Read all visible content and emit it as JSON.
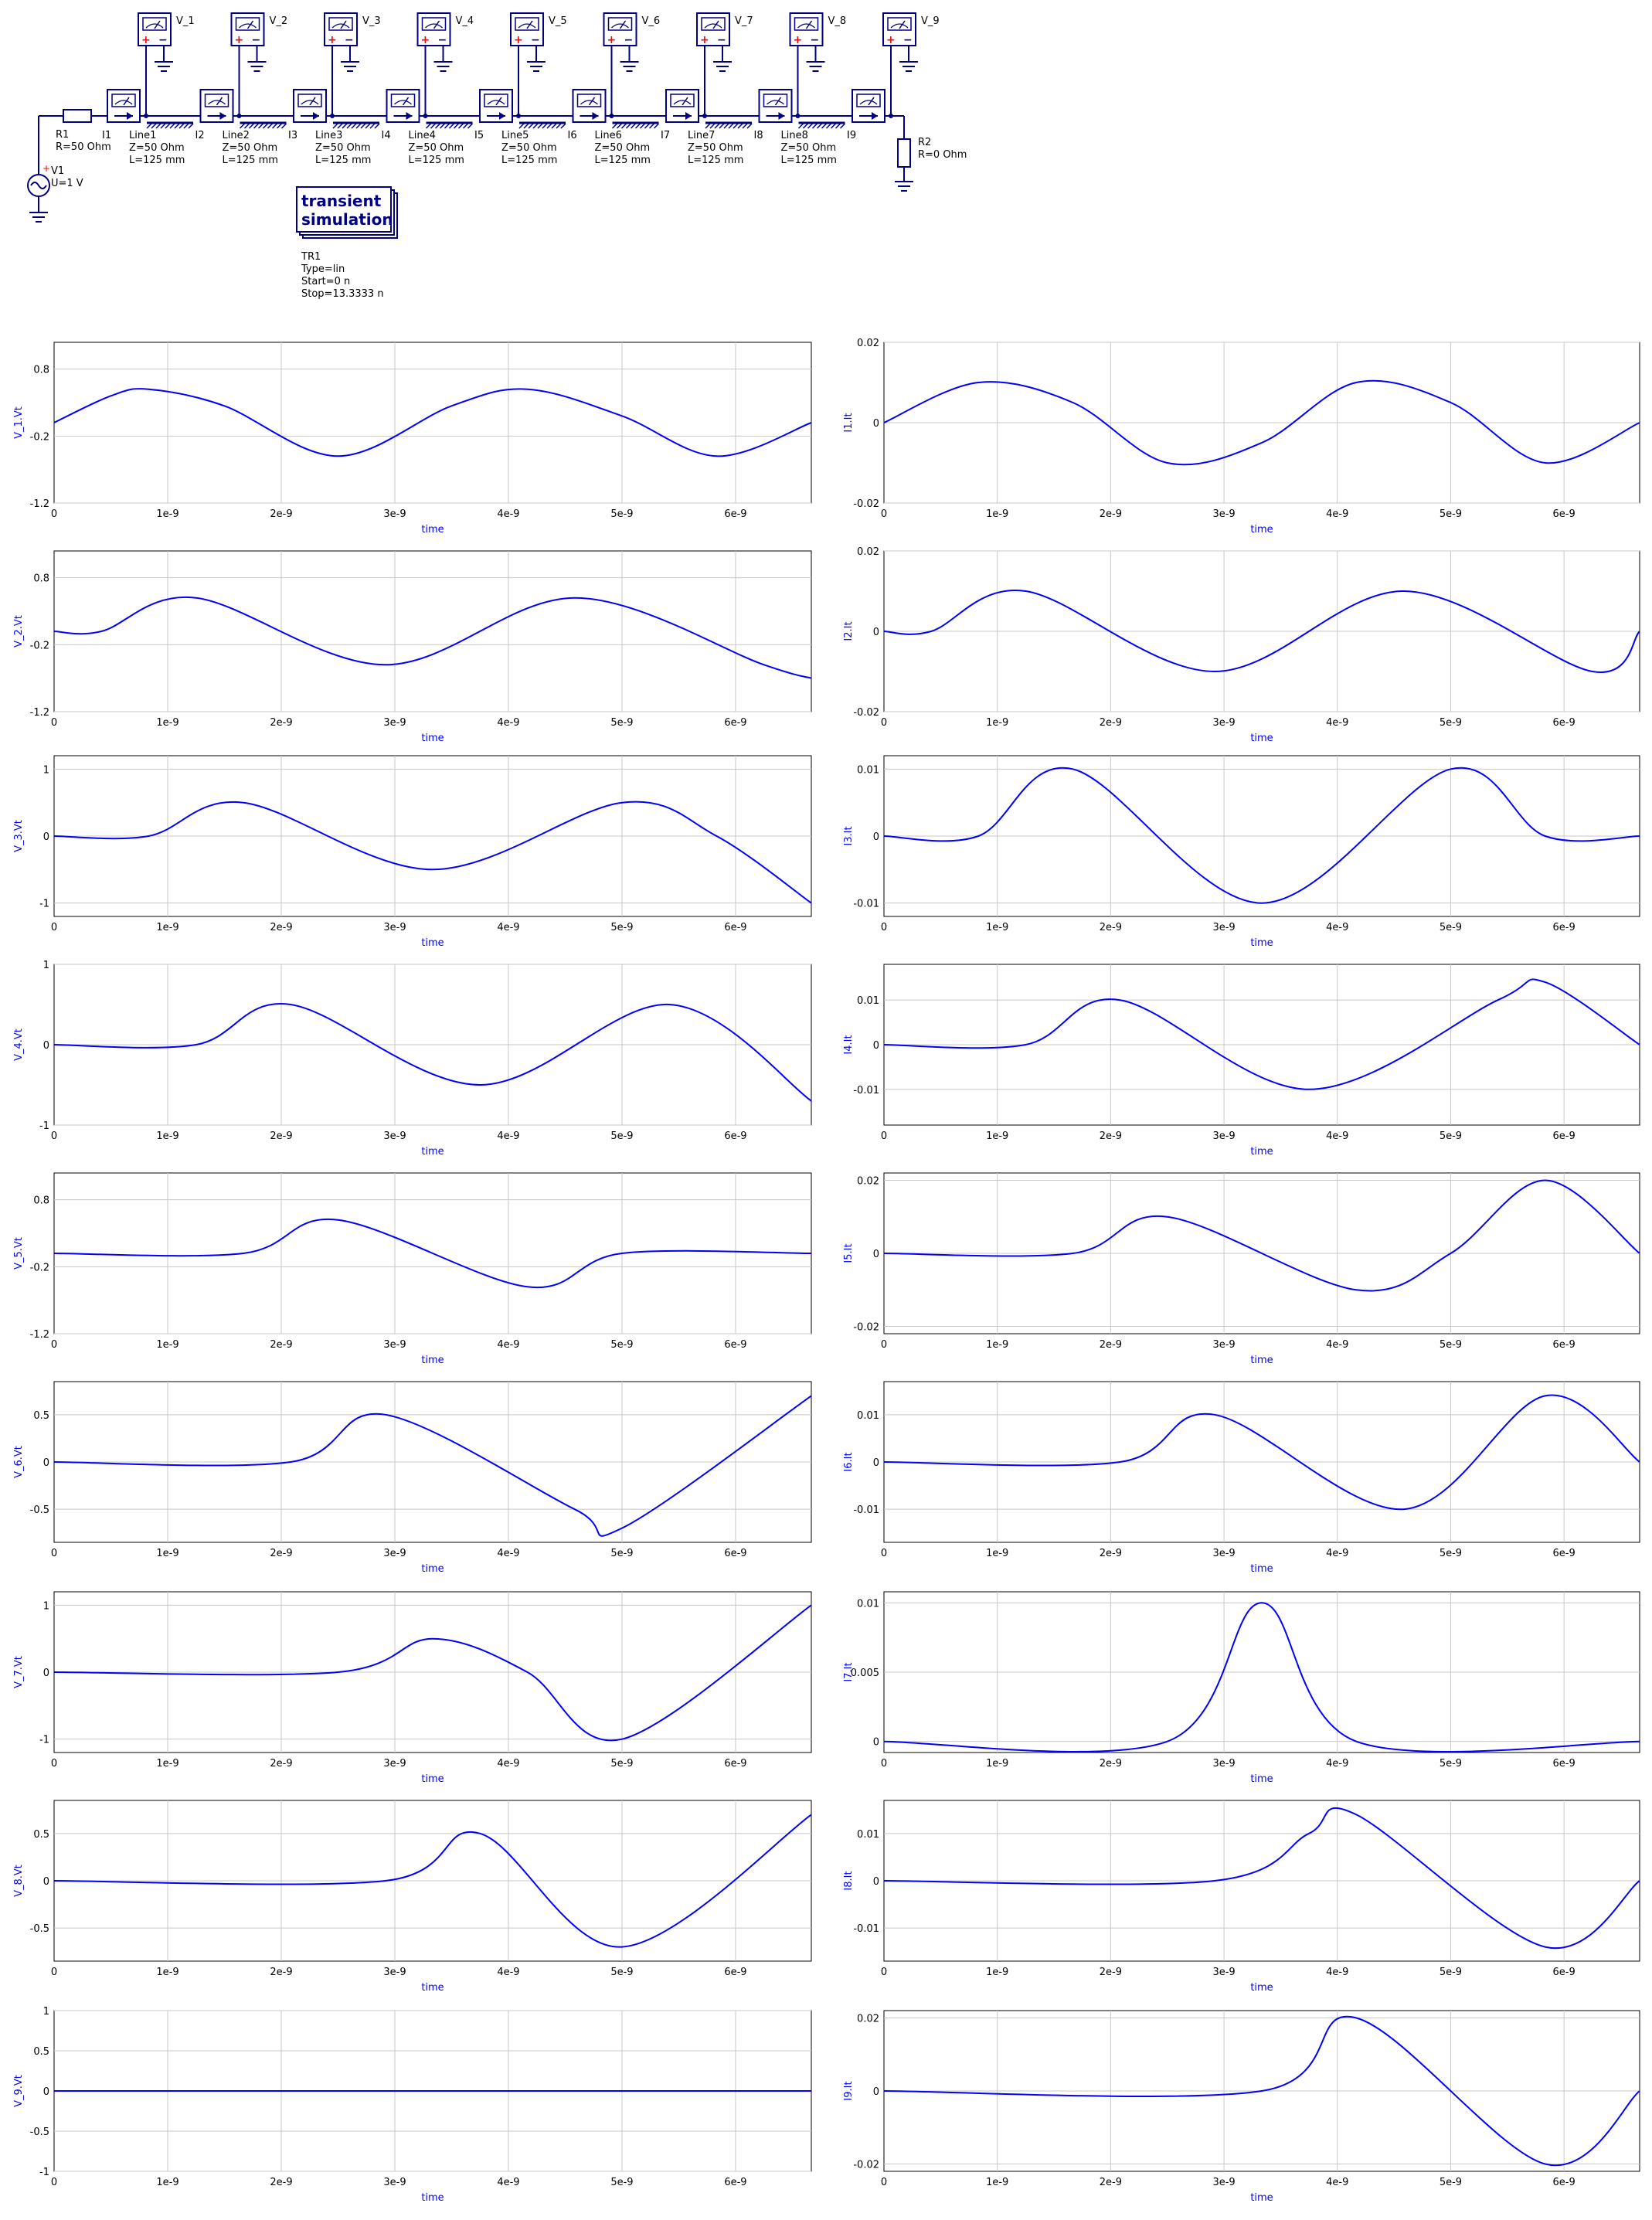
{
  "schematic": {
    "source": {
      "name": "V1",
      "param": "U=1 V"
    },
    "r1": {
      "name": "R1",
      "param": "R=50 Ohm"
    },
    "r2": {
      "name": "R2",
      "param": "R=0 Ohm"
    },
    "voltmeters": [
      "V_1",
      "V_2",
      "V_3",
      "V_4",
      "V_5",
      "V_6",
      "V_7",
      "V_8",
      "V_9"
    ],
    "ammeters": [
      "I1",
      "I2",
      "I3",
      "I4",
      "I5",
      "I6",
      "I7",
      "I8",
      "I9"
    ],
    "lines": [
      {
        "name": "Line1",
        "z": "Z=50 Ohm",
        "l": "L=125 mm"
      },
      {
        "name": "Line2",
        "z": "Z=50 Ohm",
        "l": "L=125 mm"
      },
      {
        "name": "Line3",
        "z": "Z=50 Ohm",
        "l": "L=125 mm"
      },
      {
        "name": "Line4",
        "z": "Z=50 Ohm",
        "l": "L=125 mm"
      },
      {
        "name": "Line5",
        "z": "Z=50 Ohm",
        "l": "L=125 mm"
      },
      {
        "name": "Line6",
        "z": "Z=50 Ohm",
        "l": "L=125 mm"
      },
      {
        "name": "Line7",
        "z": "Z=50 Ohm",
        "l": "L=125 mm"
      },
      {
        "name": "Line8",
        "z": "Z=50 Ohm",
        "l": "L=125 mm"
      }
    ],
    "sim": {
      "title1": "transient",
      "title2": "simulation",
      "name": "TR1",
      "type": "Type=lin",
      "start": "Start=0 n",
      "stop": "Stop=13.3333 n"
    }
  },
  "colors": {
    "trace": "#0000ff",
    "schematic": "#000080",
    "grid": "#c8c8c8",
    "plus": "#ff0000"
  },
  "chart_data": [
    {
      "type": "line",
      "ylabel": "V_1.Vt",
      "xlabel": "time",
      "xlim": [
        0,
        6.667e-09
      ],
      "ylim": [
        -1.2,
        1.2
      ],
      "yticks": [
        "0.8",
        "-0.2",
        "-1.2"
      ],
      "ytick_values": [
        0.8,
        -0.2,
        -1.2
      ],
      "xticks": [
        "0",
        "1e-9",
        "2e-9",
        "3e-9",
        "4e-9",
        "5e-9",
        "6e-9"
      ],
      "x": [
        0,
        5e-10,
        8.33e-10,
        1.5e-09,
        2.5e-09,
        3.5e-09,
        4.167e-09,
        5e-09,
        5.833e-09,
        6.667e-09
      ],
      "y": [
        0,
        0.4,
        0.5,
        0.25,
        -0.5,
        0.25,
        0.5,
        0.1,
        -0.5,
        0
      ]
    },
    {
      "type": "line",
      "ylabel": "I1.It",
      "xlabel": "time",
      "xlim": [
        0,
        6.667e-09
      ],
      "ylim": [
        -0.02,
        0.02
      ],
      "yticks": [
        "0.02",
        "0",
        "-0.02"
      ],
      "ytick_values": [
        0.02,
        0,
        -0.02
      ],
      "xticks": [
        "0",
        "1e-9",
        "2e-9",
        "3e-9",
        "4e-9",
        "5e-9",
        "6e-9"
      ],
      "x": [
        0,
        8.33e-10,
        1.667e-09,
        2.5e-09,
        3.333e-09,
        4.167e-09,
        5e-09,
        5.833e-09,
        6.667e-09
      ],
      "y": [
        0,
        0.01,
        0.005,
        -0.01,
        -0.005,
        0.01,
        0.005,
        -0.01,
        0
      ]
    },
    {
      "type": "line",
      "ylabel": "V_2.Vt",
      "xlabel": "time",
      "xlim": [
        0,
        6.667e-09
      ],
      "ylim": [
        -1.2,
        1.2
      ],
      "yticks": [
        "0.8",
        "-0.2",
        "-1.2"
      ],
      "ytick_values": [
        0.8,
        -0.2,
        -1.2
      ],
      "xticks": [
        "0",
        "1e-9",
        "2e-9",
        "3e-9",
        "4e-9",
        "5e-9",
        "6e-9"
      ],
      "x": [
        0,
        4.17e-10,
        1.25e-09,
        2.917e-09,
        4.583e-09,
        6.25e-09,
        6.667e-09
      ],
      "y": [
        0,
        0,
        0.5,
        -0.5,
        0.5,
        -0.5,
        -0.7
      ]
    },
    {
      "type": "line",
      "ylabel": "I2.It",
      "xlabel": "time",
      "xlim": [
        0,
        6.667e-09
      ],
      "ylim": [
        -0.02,
        0.02
      ],
      "yticks": [
        "0.02",
        "0",
        "-0.02"
      ],
      "ytick_values": [
        0.02,
        0,
        -0.02
      ],
      "xticks": [
        "0",
        "1e-9",
        "2e-9",
        "3e-9",
        "4e-9",
        "5e-9",
        "6e-9"
      ],
      "x": [
        0,
        4.17e-10,
        1.25e-09,
        2.917e-09,
        4.583e-09,
        6.25e-09,
        6.667e-09
      ],
      "y": [
        0,
        0,
        0.01,
        -0.01,
        0.01,
        -0.01,
        0
      ]
    },
    {
      "type": "line",
      "ylabel": "V_3.Vt",
      "xlabel": "time",
      "xlim": [
        0,
        6.667e-09
      ],
      "ylim": [
        -1.2,
        1.2
      ],
      "yticks": [
        "1",
        "0",
        "-1"
      ],
      "ytick_values": [
        1,
        0,
        -1
      ],
      "xticks": [
        "0",
        "1e-9",
        "2e-9",
        "3e-9",
        "4e-9",
        "5e-9",
        "6e-9"
      ],
      "x": [
        0,
        8.33e-10,
        1.667e-09,
        3.333e-09,
        5e-09,
        5.833e-09,
        6.667e-09
      ],
      "y": [
        0,
        0,
        0.5,
        -0.5,
        0.5,
        0,
        -1
      ]
    },
    {
      "type": "line",
      "ylabel": "I3.It",
      "xlabel": "time",
      "xlim": [
        0,
        6.667e-09
      ],
      "ylim": [
        -0.012,
        0.012
      ],
      "yticks": [
        "0.01",
        "0",
        "-0.01"
      ],
      "ytick_values": [
        0.01,
        0,
        -0.01
      ],
      "xticks": [
        "0",
        "1e-9",
        "2e-9",
        "3e-9",
        "4e-9",
        "5e-9",
        "6e-9"
      ],
      "x": [
        0,
        8.33e-10,
        1.667e-09,
        3.333e-09,
        5e-09,
        5.833e-09,
        6.667e-09
      ],
      "y": [
        0,
        0,
        0.01,
        -0.01,
        0.01,
        0,
        0
      ]
    },
    {
      "type": "line",
      "ylabel": "V_4.Vt",
      "xlabel": "time",
      "xlim": [
        0,
        6.667e-09
      ],
      "ylim": [
        -1,
        1
      ],
      "yticks": [
        "1",
        "0",
        "-1"
      ],
      "ytick_values": [
        1,
        0,
        -1
      ],
      "xticks": [
        "0",
        "1e-9",
        "2e-9",
        "3e-9",
        "4e-9",
        "5e-9",
        "6e-9"
      ],
      "x": [
        0,
        1.25e-09,
        2.083e-09,
        3.75e-09,
        5.417e-09,
        6.667e-09
      ],
      "y": [
        0,
        0,
        0.5,
        -0.5,
        0.5,
        -0.7
      ]
    },
    {
      "type": "line",
      "ylabel": "I4.It",
      "xlabel": "time",
      "xlim": [
        0,
        6.667e-09
      ],
      "ylim": [
        -0.018,
        0.018
      ],
      "yticks": [
        "0.01",
        "0",
        "-0.01"
      ],
      "ytick_values": [
        0.01,
        0,
        -0.01
      ],
      "xticks": [
        "0",
        "1e-9",
        "2e-9",
        "3e-9",
        "4e-9",
        "5e-9",
        "6e-9"
      ],
      "x": [
        0,
        1.25e-09,
        2.083e-09,
        3.75e-09,
        5.417e-09,
        5.833e-09,
        6.667e-09
      ],
      "y": [
        0,
        0,
        0.01,
        -0.01,
        0.01,
        0.014,
        0
      ]
    },
    {
      "type": "line",
      "ylabel": "V_5.Vt",
      "xlabel": "time",
      "xlim": [
        0,
        6.667e-09
      ],
      "ylim": [
        -1.2,
        1.2
      ],
      "yticks": [
        "0.8",
        "-0.2",
        "-1.2"
      ],
      "ytick_values": [
        0.8,
        -0.2,
        -1.2
      ],
      "xticks": [
        "0",
        "1e-9",
        "2e-9",
        "3e-9",
        "4e-9",
        "5e-9",
        "6e-9"
      ],
      "x": [
        0,
        1.667e-09,
        2.5e-09,
        4.167e-09,
        5e-09,
        6.667e-09
      ],
      "y": [
        0,
        0,
        0.5,
        -0.5,
        0,
        0
      ]
    },
    {
      "type": "line",
      "ylabel": "I5.It",
      "xlabel": "time",
      "xlim": [
        0,
        6.667e-09
      ],
      "ylim": [
        -0.022,
        0.022
      ],
      "yticks": [
        "0.02",
        "0",
        "-0.02"
      ],
      "ytick_values": [
        0.02,
        0,
        -0.02
      ],
      "xticks": [
        "0",
        "1e-9",
        "2e-9",
        "3e-9",
        "4e-9",
        "5e-9",
        "6e-9"
      ],
      "x": [
        0,
        1.667e-09,
        2.5e-09,
        4.167e-09,
        5e-09,
        5.833e-09,
        6.667e-09
      ],
      "y": [
        0,
        0,
        0.01,
        -0.01,
        0,
        0.02,
        0
      ]
    },
    {
      "type": "line",
      "ylabel": "V_6.Vt",
      "xlabel": "time",
      "xlim": [
        0,
        6.667e-09
      ],
      "ylim": [
        -0.85,
        0.85
      ],
      "yticks": [
        "0.5",
        "0",
        "-0.5"
      ],
      "ytick_values": [
        0.5,
        0,
        -0.5
      ],
      "xticks": [
        "0",
        "1e-9",
        "2e-9",
        "3e-9",
        "4e-9",
        "5e-9",
        "6e-9"
      ],
      "x": [
        0,
        2.083e-09,
        2.917e-09,
        4.583e-09,
        5e-09,
        6.667e-09
      ],
      "y": [
        0,
        0,
        0.5,
        -0.5,
        -0.7,
        0.7
      ]
    },
    {
      "type": "line",
      "ylabel": "I6.It",
      "xlabel": "time",
      "xlim": [
        0,
        6.667e-09
      ],
      "ylim": [
        -0.017,
        0.017
      ],
      "yticks": [
        "0.01",
        "0",
        "-0.01"
      ],
      "ytick_values": [
        0.01,
        0,
        -0.01
      ],
      "xticks": [
        "0",
        "1e-9",
        "2e-9",
        "3e-9",
        "4e-9",
        "5e-9",
        "6e-9"
      ],
      "x": [
        0,
        2.083e-09,
        2.917e-09,
        4.583e-09,
        5.833e-09,
        6.667e-09
      ],
      "y": [
        0,
        0,
        0.01,
        -0.01,
        0.014,
        0
      ]
    },
    {
      "type": "line",
      "ylabel": "V_7.Vt",
      "xlabel": "time",
      "xlim": [
        0,
        6.667e-09
      ],
      "ylim": [
        -1.2,
        1.2
      ],
      "yticks": [
        "1",
        "0",
        "-1"
      ],
      "ytick_values": [
        1,
        0,
        -1
      ],
      "xticks": [
        "0",
        "1e-9",
        "2e-9",
        "3e-9",
        "4e-9",
        "5e-9",
        "6e-9"
      ],
      "x": [
        0,
        2.5e-09,
        3.333e-09,
        4.167e-09,
        5e-09,
        6.667e-09
      ],
      "y": [
        0,
        0,
        0.5,
        0,
        -1,
        1
      ]
    },
    {
      "type": "line",
      "ylabel": "I7.It",
      "xlabel": "time",
      "xlim": [
        0,
        6.667e-09
      ],
      "ylim": [
        -0.0008,
        0.0108
      ],
      "yticks": [
        "0.01",
        "0.005",
        "0"
      ],
      "ytick_values": [
        0.01,
        0.005,
        0
      ],
      "xticks": [
        "0",
        "1e-9",
        "2e-9",
        "3e-9",
        "4e-9",
        "5e-9",
        "6e-9"
      ],
      "x": [
        0,
        2.5e-09,
        3.333e-09,
        4.167e-09,
        6.667e-09
      ],
      "y": [
        0,
        0,
        0.01,
        0,
        0
      ]
    },
    {
      "type": "line",
      "ylabel": "V_8.Vt",
      "xlabel": "time",
      "xlim": [
        0,
        6.667e-09
      ],
      "ylim": [
        -0.85,
        0.85
      ],
      "yticks": [
        "0.5",
        "0",
        "-0.5"
      ],
      "ytick_values": [
        0.5,
        0,
        -0.5
      ],
      "xticks": [
        "0",
        "1e-9",
        "2e-9",
        "3e-9",
        "4e-9",
        "5e-9",
        "6e-9"
      ],
      "x": [
        0,
        2.917e-09,
        3.75e-09,
        5e-09,
        6.667e-09
      ],
      "y": [
        0,
        0,
        0.5,
        -0.7,
        0.7
      ]
    },
    {
      "type": "line",
      "ylabel": "I8.It",
      "xlabel": "time",
      "xlim": [
        0,
        6.667e-09
      ],
      "ylim": [
        -0.017,
        0.017
      ],
      "yticks": [
        "0.01",
        "0",
        "-0.01"
      ],
      "ytick_values": [
        0.01,
        0,
        -0.01
      ],
      "xticks": [
        "0",
        "1e-9",
        "2e-9",
        "3e-9",
        "4e-9",
        "5e-9",
        "6e-9"
      ],
      "x": [
        0,
        2.917e-09,
        3.75e-09,
        4.167e-09,
        5.833e-09,
        6.667e-09
      ],
      "y": [
        0,
        0,
        0.01,
        0.014,
        -0.014,
        0
      ]
    },
    {
      "type": "line",
      "ylabel": "V_9.Vt",
      "xlabel": "time",
      "xlim": [
        0,
        6.667e-09
      ],
      "ylim": [
        -1,
        1
      ],
      "yticks": [
        "1",
        "0.5",
        "0",
        "-0.5",
        "-1"
      ],
      "ytick_values": [
        1,
        0.5,
        0,
        -0.5,
        -1
      ],
      "xticks": [
        "0",
        "1e-9",
        "2e-9",
        "3e-9",
        "4e-9",
        "5e-9",
        "6e-9"
      ],
      "x": [
        0,
        6.667e-09
      ],
      "y": [
        0,
        0
      ]
    },
    {
      "type": "line",
      "ylabel": "I9.It",
      "xlabel": "time",
      "xlim": [
        0,
        6.667e-09
      ],
      "ylim": [
        -0.022,
        0.022
      ],
      "yticks": [
        "0.02",
        "0",
        "-0.02"
      ],
      "ytick_values": [
        0.02,
        0,
        -0.02
      ],
      "xticks": [
        "0",
        "1e-9",
        "2e-9",
        "3e-9",
        "4e-9",
        "5e-9",
        "6e-9"
      ],
      "x": [
        0,
        3.333e-09,
        4.167e-09,
        5.833e-09,
        6.667e-09
      ],
      "y": [
        0,
        0,
        0.02,
        -0.02,
        0
      ]
    }
  ]
}
